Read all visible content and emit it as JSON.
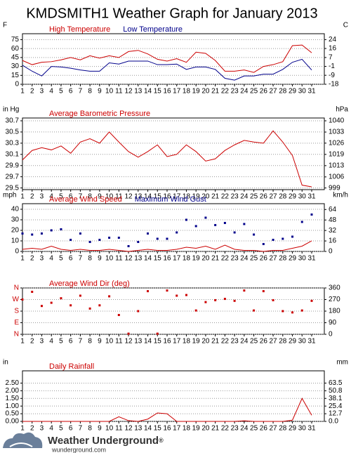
{
  "title": "KMDSMITH1 Weather Graph for January 2013",
  "footer": {
    "brand": "Weather Underground",
    "mark": "®",
    "site": "wunderground.com"
  },
  "chart_data": [
    {
      "type": "line",
      "yunit": "F",
      "y2unit": "C",
      "categories": [
        "1",
        "2",
        "3",
        "4",
        "5",
        "6",
        "7",
        "8",
        "9",
        "10",
        "11",
        "12",
        "13",
        "14",
        "15",
        "16",
        "17",
        "18",
        "19",
        "20",
        "21",
        "22",
        "23",
        "24",
        "25",
        "26",
        "27",
        "28",
        "29",
        "30",
        "31"
      ],
      "ylim": [
        0,
        85
      ],
      "yticks": [
        0,
        15,
        30,
        45,
        60,
        75
      ],
      "y2lim": [
        -17.8,
        29.4
      ],
      "y2ticks": [
        {
          "value": -17.8,
          "label": "-18"
        },
        {
          "value": -9.4,
          "label": "-9"
        },
        {
          "value": -1.1,
          "label": "-1"
        },
        {
          "value": 7.2,
          "label": "7"
        },
        {
          "value": 15.6,
          "label": "16"
        },
        {
          "value": 23.9,
          "label": "24"
        }
      ],
      "grid": true,
      "series": [
        {
          "name": "High Temperature",
          "color": "#cc0000",
          "values": [
            40,
            33,
            37,
            38,
            41,
            45,
            41,
            48,
            44,
            48,
            45,
            55,
            57,
            51,
            42,
            39,
            43,
            37,
            54,
            52,
            40,
            22,
            22,
            24,
            20,
            30,
            33,
            38,
            65,
            66,
            53
          ]
        },
        {
          "name": "Low Temperature",
          "color": "#00008b",
          "values": [
            32,
            22,
            14,
            30,
            29,
            27,
            24,
            22,
            22,
            36,
            34,
            39,
            39,
            39,
            33,
            33,
            34,
            25,
            29,
            29,
            25,
            10,
            7,
            14,
            14,
            17,
            17,
            25,
            37,
            42,
            24
          ]
        }
      ]
    },
    {
      "type": "line",
      "yunit": "in Hg",
      "y2unit": "hPa",
      "categories": [
        "1",
        "2",
        "3",
        "4",
        "5",
        "6",
        "7",
        "8",
        "9",
        "10",
        "11",
        "12",
        "13",
        "14",
        "15",
        "16",
        "17",
        "18",
        "19",
        "20",
        "21",
        "22",
        "23",
        "24",
        "25",
        "26",
        "27",
        "28",
        "29",
        "30",
        "31"
      ],
      "ylim": [
        29.47,
        30.75
      ],
      "yticks": [
        29.5,
        29.7,
        29.9,
        30.1,
        30.3,
        30.5,
        30.7
      ],
      "y2lim": [
        998.0,
        1041.3
      ],
      "y2ticks": [
        999,
        {
          "value": 1005.7,
          "label": "1006"
        },
        {
          "value": 1012.5,
          "label": "1013"
        },
        {
          "value": 1019.3,
          "label": "1019"
        },
        {
          "value": 1026.1,
          "label": "1026"
        },
        {
          "value": 1032.8,
          "label": "1033"
        },
        {
          "value": 1039.6,
          "label": "1040"
        }
      ],
      "grid": true,
      "series": [
        {
          "name": "Average Barometric Pressure",
          "color": "#cc0000",
          "values": [
            30.0,
            30.17,
            30.22,
            30.18,
            30.25,
            30.12,
            30.32,
            30.38,
            30.3,
            30.5,
            30.32,
            30.15,
            30.05,
            30.15,
            30.27,
            30.06,
            30.1,
            30.27,
            30.15,
            29.98,
            30.02,
            30.17,
            30.27,
            30.35,
            30.32,
            30.3,
            30.52,
            30.32,
            30.08,
            29.55,
            29.52
          ]
        }
      ]
    },
    {
      "type": "line",
      "yunit": "mph",
      "y2unit": "km/h",
      "categories": [
        "1",
        "2",
        "3",
        "4",
        "5",
        "6",
        "7",
        "8",
        "9",
        "10",
        "11",
        "12",
        "13",
        "14",
        "15",
        "16",
        "17",
        "18",
        "19",
        "20",
        "21",
        "22",
        "23",
        "24",
        "25",
        "26",
        "27",
        "28",
        "29",
        "30",
        "31"
      ],
      "ylim": [
        0,
        45.3
      ],
      "yticks": [
        0,
        10,
        20,
        30,
        40
      ],
      "y2lim": [
        0,
        72.9
      ],
      "y2ticks": [
        0,
        16,
        32,
        48,
        64
      ],
      "grid": true,
      "series": [
        {
          "name": "Average Wind Speed",
          "color": "#cc0000",
          "values": [
            2,
            3,
            2,
            5,
            2,
            1,
            2,
            1,
            1,
            2,
            1,
            0,
            1,
            2,
            1,
            1,
            2,
            4,
            3,
            5,
            2,
            6,
            2,
            1,
            1,
            0,
            1,
            1,
            3,
            5,
            10
          ]
        },
        {
          "name": "Maximum Wind Gust",
          "color": "#00008b",
          "type": "scatter",
          "values": [
            17,
            16,
            17,
            20,
            21,
            11,
            17,
            9,
            11,
            13,
            13,
            5,
            9,
            17,
            12,
            12,
            18,
            30,
            24,
            32,
            25,
            27,
            18,
            26,
            16,
            7,
            11,
            12,
            14,
            28,
            35
          ]
        }
      ]
    },
    {
      "type": "scatter",
      "categories": [
        "1",
        "2",
        "3",
        "4",
        "5",
        "6",
        "7",
        "8",
        "9",
        "10",
        "11",
        "12",
        "13",
        "14",
        "15",
        "16",
        "17",
        "18",
        "19",
        "20",
        "21",
        "22",
        "23",
        "24",
        "25",
        "26",
        "27",
        "28",
        "29",
        "30",
        "31"
      ],
      "ylim": [
        0,
        360
      ],
      "yticks": [
        {
          "value": 0,
          "label": "N"
        },
        {
          "value": 90,
          "label": "E"
        },
        {
          "value": 180,
          "label": "S"
        },
        {
          "value": 270,
          "label": "W"
        },
        {
          "value": 360,
          "label": "N"
        }
      ],
      "y2lim": [
        0,
        360
      ],
      "y2ticks": [
        0,
        90,
        180,
        270,
        360
      ],
      "grid": true,
      "ytick_color": "#cc0000",
      "series": [
        {
          "name": "Average Wind Dir (deg)",
          "color": "#cc0000",
          "values": [
            270,
            330,
            220,
            245,
            280,
            225,
            300,
            200,
            225,
            295,
            150,
            5,
            180,
            335,
            5,
            340,
            300,
            305,
            185,
            250,
            265,
            275,
            260,
            340,
            185,
            335,
            265,
            180,
            170,
            185,
            260
          ]
        }
      ]
    },
    {
      "type": "line",
      "yunit": "in",
      "y2unit": "mm",
      "categories": [
        "1",
        "2",
        "3",
        "4",
        "5",
        "6",
        "7",
        "8",
        "9",
        "10",
        "11",
        "12",
        "13",
        "14",
        "15",
        "16",
        "17",
        "18",
        "19",
        "20",
        "21",
        "22",
        "23",
        "24",
        "25",
        "26",
        "27",
        "28",
        "29",
        "30",
        "31"
      ],
      "ylim": [
        0,
        3.3
      ],
      "yticks": [
        {
          "value": 0,
          "label": "0.00"
        },
        {
          "value": 0.5,
          "label": "0.50"
        },
        {
          "value": 1,
          "label": "1.00"
        },
        {
          "value": 1.5,
          "label": "1.50"
        },
        {
          "value": 2,
          "label": "2.00"
        },
        {
          "value": 2.5,
          "label": "2.50"
        }
      ],
      "y2lim": [
        0,
        83.8
      ],
      "y2ticks": [
        {
          "value": 0,
          "label": "0.0"
        },
        12.7,
        25.4,
        38.1,
        50.8,
        63.5
      ],
      "grid": true,
      "series": [
        {
          "name": "Daily Rainfall",
          "color": "#cc0000",
          "values": [
            0,
            0,
            0,
            0,
            0,
            0,
            0,
            0,
            0,
            0,
            0.3,
            0.05,
            0,
            0.15,
            0.55,
            0.5,
            0,
            0,
            0,
            0,
            0,
            0,
            0,
            0.04,
            0,
            0,
            0,
            0,
            0.08,
            1.5,
            0.4
          ]
        }
      ]
    }
  ]
}
